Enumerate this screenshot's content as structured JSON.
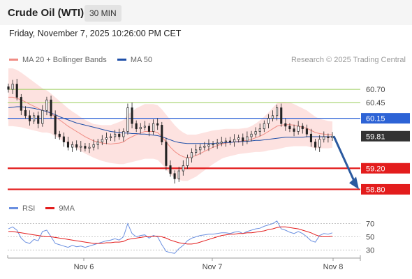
{
  "header": {
    "title": "Crude Oil (WTI)",
    "timeframe": "30 MIN"
  },
  "datetime": "Friday, November 7, 2025 10:26:00 PM CET",
  "copyright": "Research © 2025 Trading Central",
  "colors": {
    "ma20": "#f08c84",
    "ma50": "#1f4fa8",
    "bollinger_fill": "#fde2e0",
    "candle": "#222222",
    "support": "#e31d1d",
    "resistance_minor": "#9acd5a",
    "resistance_main": "#2d63d6",
    "arrow": "#2b5aa0",
    "rsi": "#6a8fe0",
    "rsi_ma": "#e31d1d"
  },
  "chart_data": [
    {
      "type": "line",
      "panel": "price",
      "legend": [
        {
          "name": "MA 20 + Bollinger Bands",
          "color": "#f08c84"
        },
        {
          "name": "MA 50",
          "color": "#1f4fa8"
        }
      ],
      "ylim": [
        58.62,
        61.02
      ],
      "levels": [
        {
          "value": 60.7,
          "label": "60.70",
          "kind": "resistance-minor"
        },
        {
          "value": 60.45,
          "label": "60.45",
          "kind": "resistance-minor"
        },
        {
          "value": 60.15,
          "label": "60.15",
          "kind": "resistance-main"
        },
        {
          "value": 59.81,
          "label": "59.81",
          "kind": "last-price"
        },
        {
          "value": 59.2,
          "label": "59.20",
          "kind": "support"
        },
        {
          "value": 58.8,
          "label": "58.80",
          "kind": "support"
        }
      ],
      "forecast": {
        "from": 59.81,
        "to": 58.8,
        "direction": "down"
      },
      "close_series": [
        60.7,
        60.8,
        60.55,
        60.3,
        60.2,
        60.1,
        60.2,
        60.05,
        60.3,
        60.5,
        60.2,
        59.85,
        59.8,
        59.7,
        59.6,
        59.65,
        59.6,
        59.62,
        59.58,
        59.6,
        59.65,
        59.7,
        59.75,
        59.78,
        59.8,
        59.85,
        59.8,
        59.9,
        60.35,
        60.05,
        59.95,
        59.98,
        60.0,
        59.9,
        60.05,
        60.02,
        59.7,
        59.25,
        59.1,
        59.0,
        59.15,
        59.25,
        59.4,
        59.5,
        59.55,
        59.6,
        59.62,
        59.65,
        59.66,
        59.68,
        59.7,
        59.72,
        59.7,
        59.75,
        59.78,
        59.72,
        59.8,
        59.85,
        59.9,
        59.95,
        60.05,
        60.15,
        60.2,
        60.35,
        60.05,
        60.0,
        59.95,
        59.9,
        60.0,
        59.95,
        59.85,
        59.7,
        59.6,
        59.75,
        59.8,
        59.78,
        59.81
      ],
      "ma20_series": [
        60.55,
        60.55,
        60.53,
        60.5,
        60.46,
        60.42,
        60.38,
        60.34,
        60.3,
        60.28,
        60.24,
        60.18,
        60.12,
        60.06,
        60.0,
        59.95,
        59.9,
        59.85,
        59.8,
        59.76,
        59.72,
        59.7,
        59.68,
        59.67,
        59.66,
        59.67,
        59.68,
        59.7,
        59.76,
        59.8,
        59.84,
        59.87,
        59.9,
        59.9,
        59.9,
        59.88,
        59.8,
        59.7,
        59.6,
        59.52,
        59.46,
        59.42,
        59.4,
        59.42,
        59.44,
        59.48,
        59.52,
        59.56,
        59.6,
        59.63,
        59.66,
        59.68,
        59.69,
        59.7,
        59.71,
        59.72,
        59.73,
        59.75,
        59.78,
        59.81,
        59.85,
        59.9,
        59.95,
        60.0,
        60.02,
        60.03,
        60.03,
        60.02,
        60.0,
        59.98,
        59.96,
        59.92,
        59.88,
        59.86,
        59.85,
        59.84,
        59.84
      ],
      "ma50_series": [
        60.35,
        60.36,
        60.37,
        60.37,
        60.36,
        60.35,
        60.34,
        60.32,
        60.3,
        60.28,
        60.25,
        60.22,
        60.18,
        60.15,
        60.12,
        60.09,
        60.06,
        60.04,
        60.02,
        60.0,
        59.98,
        59.96,
        59.94,
        59.92,
        59.9,
        59.89,
        59.88,
        59.87,
        59.87,
        59.86,
        59.86,
        59.85,
        59.85,
        59.84,
        59.83,
        59.82,
        59.8,
        59.77,
        59.74,
        59.71,
        59.69,
        59.68,
        59.67,
        59.67,
        59.67,
        59.67,
        59.67,
        59.67,
        59.67,
        59.68,
        59.68,
        59.69,
        59.69,
        59.7,
        59.7,
        59.71,
        59.71,
        59.72,
        59.73,
        59.73,
        59.74,
        59.75,
        59.76,
        59.77,
        59.78,
        59.79,
        59.79,
        59.79,
        59.79,
        59.79,
        59.8,
        59.8,
        59.8,
        59.8,
        59.8,
        59.8,
        59.8
      ],
      "band_width_series": [
        0.55,
        0.55,
        0.54,
        0.52,
        0.5,
        0.48,
        0.46,
        0.44,
        0.42,
        0.4,
        0.38,
        0.37,
        0.36,
        0.35,
        0.34,
        0.33,
        0.33,
        0.32,
        0.32,
        0.32,
        0.32,
        0.33,
        0.34,
        0.35,
        0.36,
        0.38,
        0.4,
        0.42,
        0.46,
        0.48,
        0.5,
        0.51,
        0.52,
        0.52,
        0.52,
        0.52,
        0.52,
        0.52,
        0.52,
        0.5,
        0.48,
        0.46,
        0.44,
        0.42,
        0.4,
        0.38,
        0.36,
        0.34,
        0.32,
        0.3,
        0.28,
        0.27,
        0.26,
        0.25,
        0.24,
        0.24,
        0.24,
        0.25,
        0.27,
        0.3,
        0.33,
        0.36,
        0.4,
        0.44,
        0.44,
        0.43,
        0.42,
        0.4,
        0.38,
        0.36,
        0.34,
        0.32,
        0.3,
        0.28,
        0.27,
        0.26,
        0.25
      ]
    },
    {
      "type": "line",
      "panel": "rsi",
      "legend": [
        {
          "name": "RSI",
          "color": "#6a8fe0"
        },
        {
          "name": "9MA",
          "color": "#e31d1d"
        }
      ],
      "ylim": [
        22,
        78
      ],
      "yticks": [
        70,
        50,
        30
      ],
      "rsi_series": [
        62,
        65,
        60,
        48,
        42,
        40,
        46,
        44,
        58,
        60,
        50,
        40,
        38,
        36,
        34,
        37,
        35,
        36,
        34,
        36,
        38,
        40,
        42,
        44,
        45,
        47,
        45,
        50,
        70,
        55,
        50,
        52,
        53,
        48,
        52,
        50,
        38,
        28,
        26,
        25,
        32,
        37,
        44,
        48,
        50,
        52,
        53,
        54,
        54,
        55,
        56,
        56,
        55,
        57,
        58,
        55,
        58,
        60,
        62,
        63,
        66,
        68,
        70,
        74,
        62,
        60,
        57,
        55,
        58,
        55,
        50,
        44,
        42,
        52,
        55,
        54,
        56
      ],
      "ma9_series": [
        58,
        58,
        57,
        56,
        55,
        54,
        53,
        52,
        51,
        50,
        50,
        49,
        48,
        47,
        46,
        45,
        44,
        43,
        42,
        41,
        40,
        40,
        40,
        41,
        41,
        42,
        42,
        43,
        46,
        47,
        48,
        49,
        50,
        50,
        51,
        51,
        50,
        48,
        45,
        43,
        41,
        40,
        39,
        39,
        40,
        42,
        44,
        46,
        48,
        50,
        52,
        53,
        54,
        54,
        55,
        55,
        56,
        56,
        57,
        58,
        59,
        61,
        62,
        64,
        65,
        65,
        64,
        63,
        62,
        60,
        58,
        56,
        53,
        51,
        50,
        50,
        51
      ]
    }
  ],
  "x_axis": {
    "ticks": [
      "Nov 6",
      "Nov 7",
      "Nov 8"
    ]
  }
}
